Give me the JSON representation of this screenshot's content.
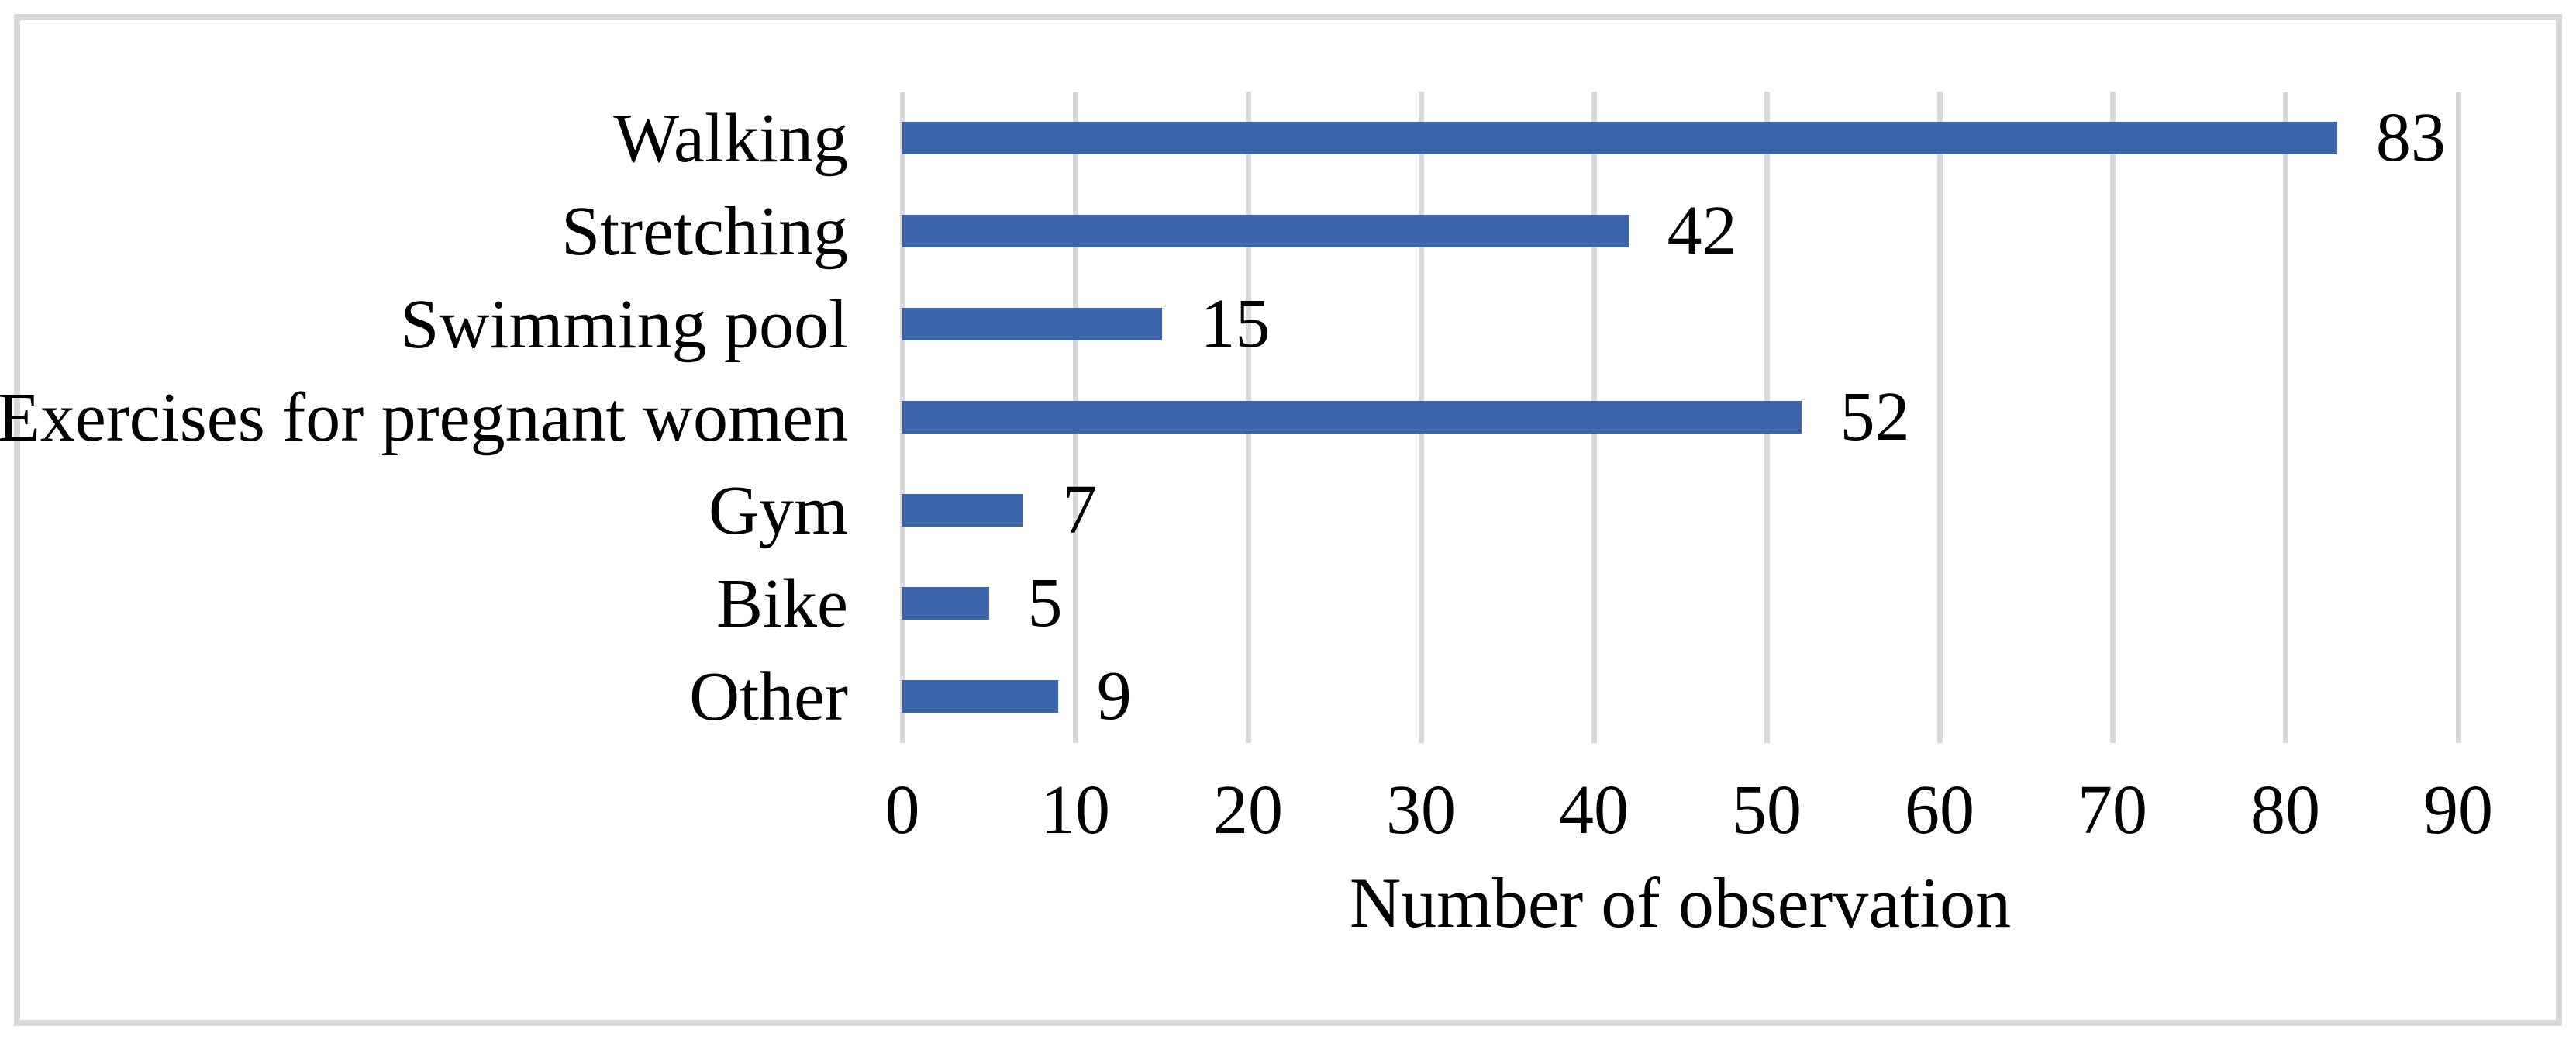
{
  "chart_data": {
    "type": "bar",
    "orientation": "horizontal",
    "categories": [
      "Walking",
      "Stretching",
      "Swimming pool",
      "Exercises for pregnant women",
      "Gym",
      "Bike",
      "Other"
    ],
    "values": [
      83,
      42,
      15,
      52,
      7,
      5,
      9
    ],
    "title": "",
    "xlabel": "Number of observation",
    "ylabel": "",
    "xlim": [
      0,
      90
    ],
    "xticks": [
      0,
      10,
      20,
      30,
      40,
      50,
      60,
      70,
      80,
      90
    ],
    "grid": "vertical-only",
    "legend": "none",
    "data_labels": "outside-end"
  },
  "colors": {
    "bar": "#3D63AA",
    "gridline": "#D9D9D9",
    "frame_border": "#D9D9D9",
    "text": "#000000",
    "background": "#FFFFFF"
  }
}
